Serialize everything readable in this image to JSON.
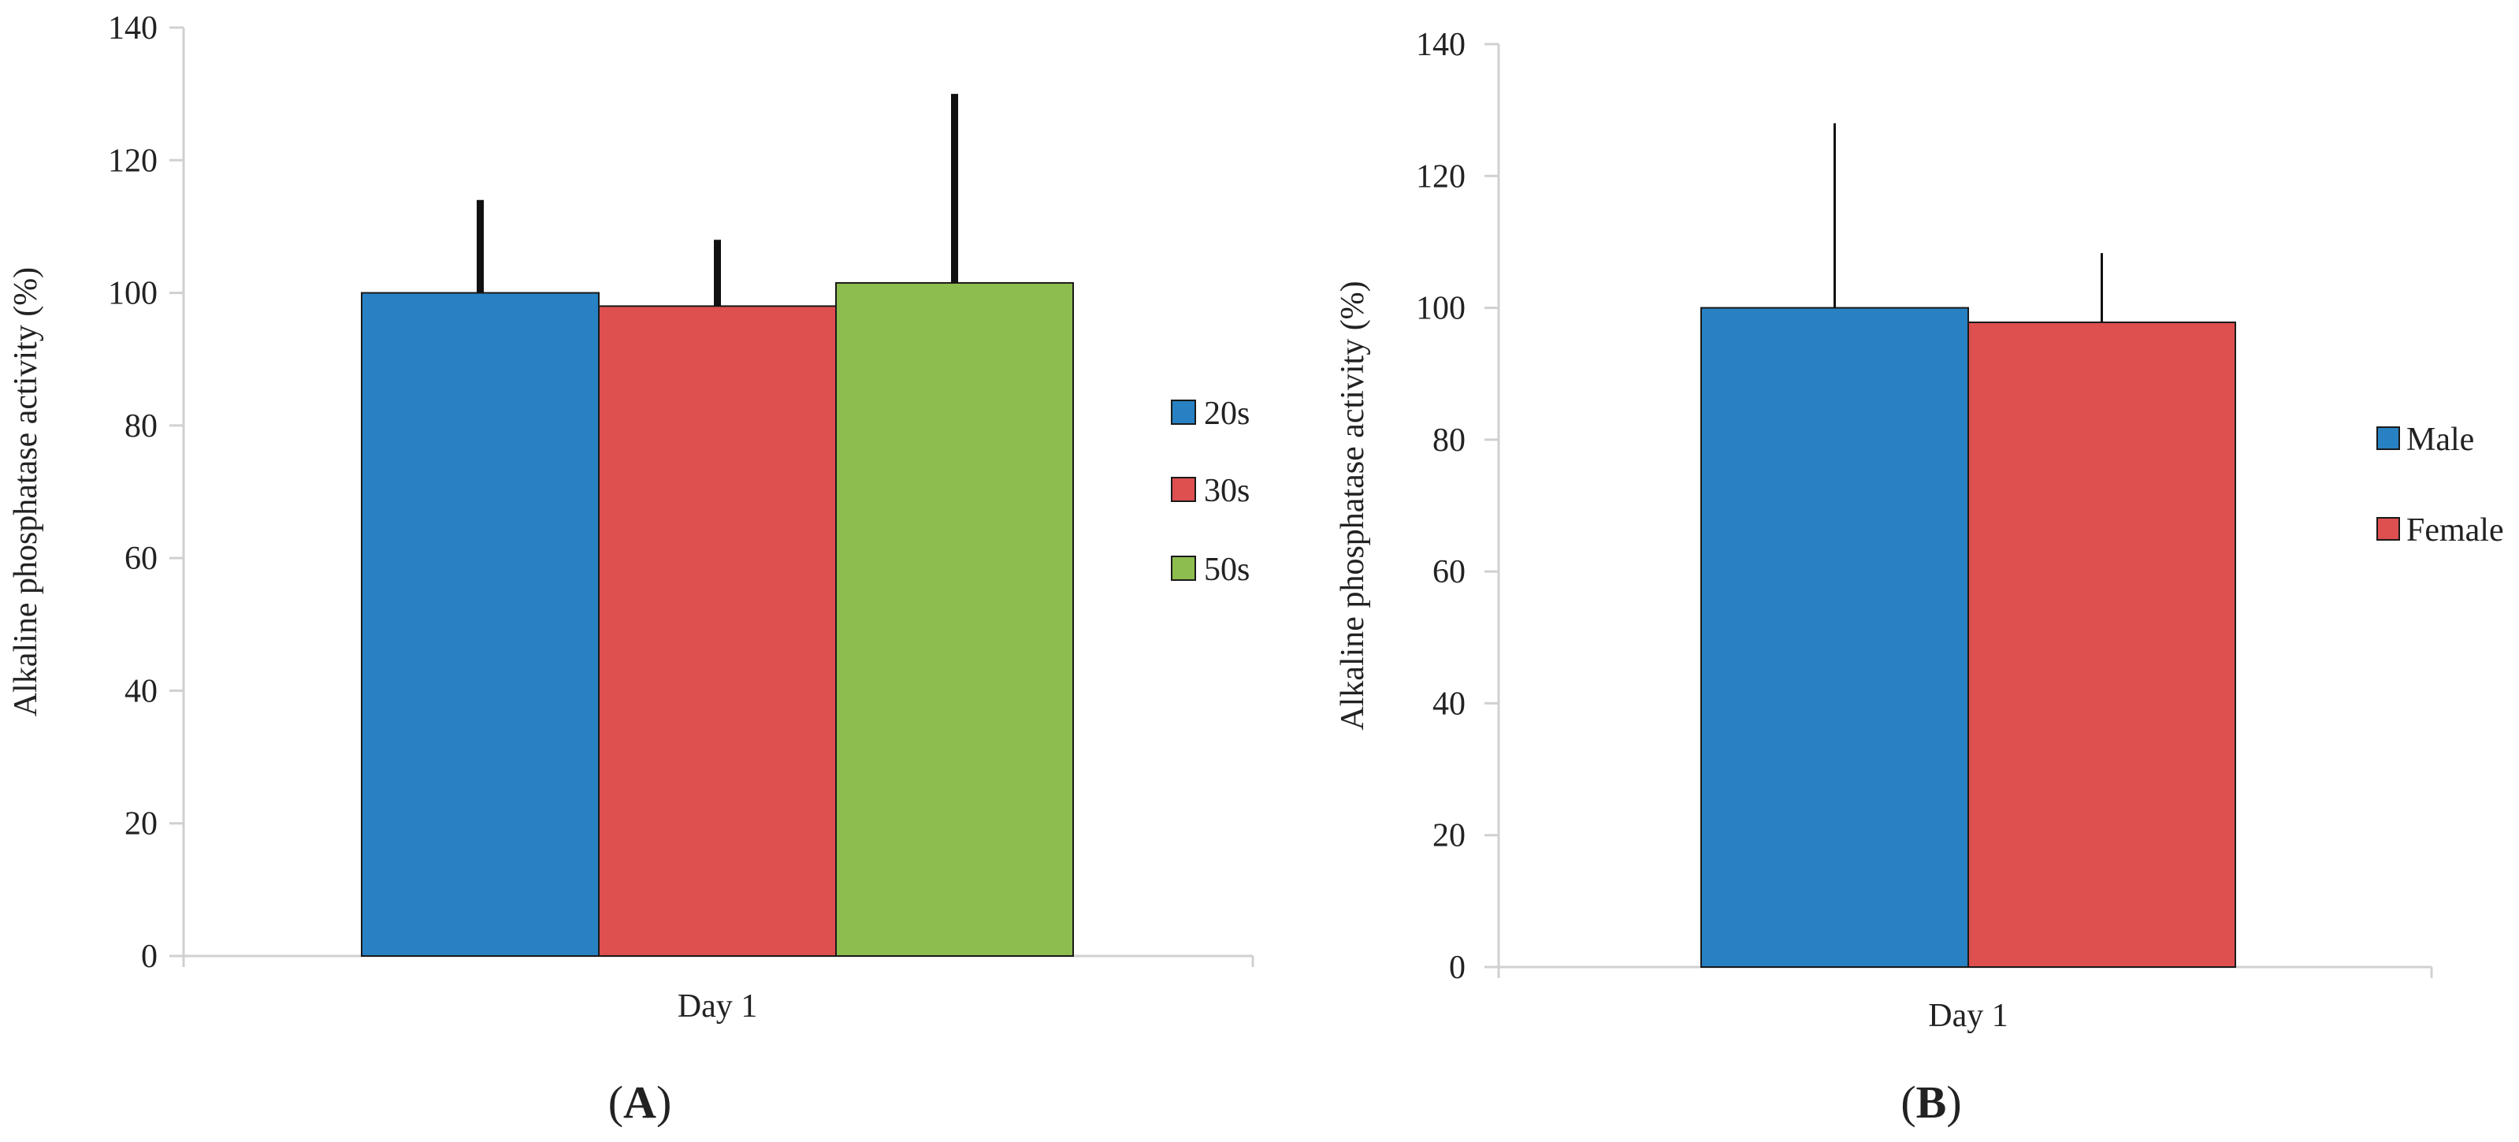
{
  "chart_data": [
    {
      "type": "bar",
      "panel_label": "A",
      "categories": [
        "Day 1"
      ],
      "series": [
        {
          "name": "20s",
          "values": [
            100
          ],
          "error": [
            14
          ],
          "color": "#2781c2"
        },
        {
          "name": "30s",
          "values": [
            98
          ],
          "error": [
            10
          ],
          "color": "#de4f4f"
        },
        {
          "name": "50s",
          "values": [
            101.5
          ],
          "error": [
            28.5
          ],
          "color": "#8dbc4f"
        }
      ],
      "ylabel": "Alkaline phosphatase activity (%)",
      "xlabel": "",
      "ylim": [
        0,
        140
      ],
      "yticks": [
        "0",
        "20",
        "40",
        "60",
        "80",
        "100",
        "120",
        "140"
      ],
      "grid": false,
      "legend": "right",
      "error_bar_style": "thick"
    },
    {
      "type": "bar",
      "panel_label": "B",
      "categories": [
        "Day 1"
      ],
      "series": [
        {
          "name": "Male",
          "values": [
            100
          ],
          "error": [
            28
          ],
          "color": "#2781c2"
        },
        {
          "name": "Female",
          "values": [
            97.8
          ],
          "error": [
            10.5
          ],
          "color": "#de4f4f"
        }
      ],
      "ylabel": "Alkaline phosphatase activity (%)",
      "xlabel": "",
      "ylim": [
        0,
        140
      ],
      "yticks": [
        "0",
        "20",
        "40",
        "60",
        "80",
        "100",
        "120",
        "140"
      ],
      "grid": false,
      "legend": "right",
      "error_bar_style": "thin"
    }
  ]
}
